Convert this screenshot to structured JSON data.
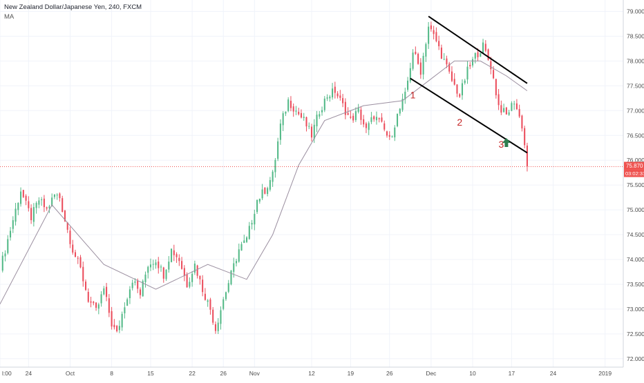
{
  "header": {
    "symbol_line": "New Zealand Dollar/Japanese Yen, 240, FXCM",
    "indicator": "MA"
  },
  "price_axis": {
    "ticks": [
      "79.000",
      "78.500",
      "78.000",
      "77.500",
      "77.000",
      "76.500",
      "76.000",
      "75.500",
      "75.000",
      "74.500",
      "74.000",
      "73.500",
      "73.000",
      "72.500",
      "72.000"
    ],
    "current_price": "75.870",
    "countdown": "03:02:31"
  },
  "time_axis": {
    "ticks": [
      "l:00",
      "24",
      "Oct",
      "8",
      "15",
      "22",
      "26",
      "Nov",
      "12",
      "19",
      "26",
      "Dec",
      "10",
      "17",
      "24",
      "2019"
    ]
  },
  "annotations": [
    "1",
    "2",
    "3"
  ],
  "colors": {
    "up": "#53b987",
    "down": "#eb4d5c",
    "ma": "#9b8fa0",
    "channel": "#000000",
    "annotation_text": "#c62828",
    "arrow": "#2e7d4f",
    "price_line": "#ef5350"
  },
  "chart_data": {
    "type": "candlestick",
    "title": "New Zealand Dollar/Japanese Yen, 240, FXCM",
    "overlay": "MA",
    "ylim": [
      72.0,
      79.0
    ],
    "current_price": 75.87,
    "close_path": [
      [
        0,
        73.8
      ],
      [
        4,
        74.6
      ],
      [
        8,
        75.4
      ],
      [
        10,
        75.1
      ],
      [
        12,
        74.85
      ],
      [
        15,
        75.2
      ],
      [
        18,
        75.0
      ],
      [
        21,
        75.3
      ],
      [
        23,
        75.25
      ],
      [
        25,
        74.8
      ],
      [
        28,
        74.2
      ],
      [
        31,
        73.8
      ],
      [
        34,
        73.2
      ],
      [
        37,
        72.95
      ],
      [
        40,
        73.4
      ],
      [
        43,
        72.7
      ],
      [
        45,
        72.5
      ],
      [
        48,
        73.1
      ],
      [
        51,
        73.6
      ],
      [
        54,
        73.3
      ],
      [
        57,
        73.9
      ],
      [
        60,
        74.0
      ],
      [
        63,
        73.7
      ],
      [
        66,
        74.2
      ],
      [
        69,
        74.0
      ],
      [
        72,
        73.5
      ],
      [
        75,
        73.9
      ],
      [
        78,
        73.4
      ],
      [
        81,
        73.0
      ],
      [
        83,
        72.6
      ],
      [
        86,
        73.2
      ],
      [
        89,
        73.7
      ],
      [
        92,
        74.2
      ],
      [
        95,
        74.4
      ],
      [
        97,
        74.8
      ],
      [
        99,
        75.2
      ],
      [
        102,
        75.4
      ],
      [
        105,
        75.7
      ],
      [
        108,
        76.7
      ],
      [
        111,
        77.2
      ],
      [
        114,
        77.0
      ],
      [
        117,
        76.8
      ],
      [
        120,
        76.5
      ],
      [
        123,
        77.0
      ],
      [
        126,
        77.3
      ],
      [
        129,
        77.4
      ],
      [
        132,
        77.1
      ],
      [
        135,
        76.8
      ],
      [
        138,
        77.0
      ],
      [
        141,
        76.6
      ],
      [
        144,
        76.9
      ],
      [
        147,
        76.7
      ],
      [
        150,
        76.4
      ],
      [
        153,
        76.9
      ],
      [
        156,
        77.3
      ],
      [
        159,
        78.2
      ],
      [
        162,
        77.8
      ],
      [
        165,
        78.7
      ],
      [
        168,
        78.4
      ],
      [
        171,
        78.0
      ],
      [
        174,
        77.6
      ],
      [
        177,
        77.3
      ],
      [
        180,
        77.8
      ],
      [
        183,
        78.1
      ],
      [
        186,
        78.3
      ],
      [
        189,
        77.9
      ],
      [
        192,
        77.1
      ],
      [
        195,
        76.9
      ],
      [
        198,
        77.2
      ],
      [
        201,
        76.7
      ],
      [
        203,
        75.9
      ]
    ],
    "ma_points": [
      [
        0,
        73.1
      ],
      [
        20,
        75.1
      ],
      [
        40,
        73.9
      ],
      [
        60,
        73.4
      ],
      [
        80,
        73.9
      ],
      [
        95,
        73.6
      ],
      [
        105,
        74.5
      ],
      [
        115,
        75.9
      ],
      [
        125,
        76.8
      ],
      [
        140,
        77.1
      ],
      [
        155,
        77.2
      ],
      [
        165,
        77.6
      ],
      [
        175,
        78.0
      ],
      [
        185,
        78.0
      ],
      [
        195,
        77.7
      ],
      [
        203,
        77.4
      ]
    ],
    "channel_lines": [
      {
        "x1": 165,
        "y1": 78.9,
        "x2": 203,
        "y2": 77.55
      },
      {
        "x1": 158,
        "y1": 77.65,
        "x2": 203,
        "y2": 76.15
      }
    ],
    "annotation_points": [
      {
        "label": "1",
        "x": 159,
        "y": 77.25
      },
      {
        "label": "2",
        "x": 177,
        "y": 76.7
      },
      {
        "label": "3",
        "x": 193,
        "y": 76.25
      }
    ],
    "arrow_point": {
      "x": 195,
      "y": 76.35
    },
    "date_ticks": [
      {
        "label": "l:00",
        "x": 0
      },
      {
        "label": "24",
        "x": 11
      },
      {
        "label": "Oct",
        "x": 27
      },
      {
        "label": "8",
        "x": 43
      },
      {
        "label": "15",
        "x": 58
      },
      {
        "label": "22",
        "x": 74
      },
      {
        "label": "26",
        "x": 86
      },
      {
        "label": "Nov",
        "x": 98
      },
      {
        "label": "12",
        "x": 120
      },
      {
        "label": "19",
        "x": 135
      },
      {
        "label": "26",
        "x": 150
      },
      {
        "label": "Dec",
        "x": 166
      },
      {
        "label": "10",
        "x": 182
      },
      {
        "label": "17",
        "x": 197
      },
      {
        "label": "24",
        "x": 213
      },
      {
        "label": "2019",
        "x": 233
      }
    ]
  }
}
